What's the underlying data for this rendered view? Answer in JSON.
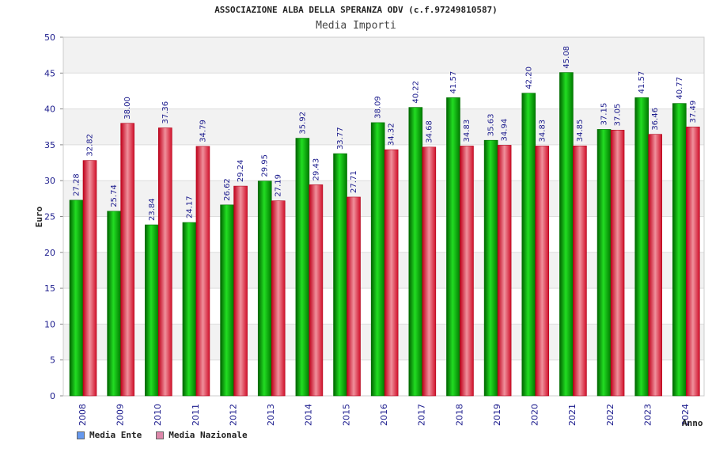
{
  "chart_data": {
    "type": "bar",
    "title": "ASSOCIAZIONE ALBA DELLA SPERANZA ODV (c.f.97249810587)",
    "subtitle": "Media Importi",
    "xlabel": "Anno",
    "ylabel": "Euro",
    "ylim": [
      0,
      50
    ],
    "yticks": [
      0,
      5,
      10,
      15,
      20,
      25,
      30,
      35,
      40,
      45,
      50
    ],
    "categories": [
      "2008",
      "2009",
      "2010",
      "2011",
      "2012",
      "2013",
      "2014",
      "2015",
      "2016",
      "2017",
      "2018",
      "2019",
      "2020",
      "2021",
      "2022",
      "2023",
      "2024"
    ],
    "series": [
      {
        "name": "Media Ente",
        "color": "#00b000",
        "legend_color": "#6699ee",
        "values": [
          27.28,
          25.74,
          23.84,
          24.17,
          26.62,
          29.95,
          35.92,
          33.77,
          38.09,
          40.22,
          41.57,
          35.63,
          42.2,
          45.08,
          37.15,
          41.57,
          40.77
        ],
        "labels": [
          "27.28",
          "25.74",
          "23.84",
          "24.17",
          "26.62",
          "29.95",
          "35.92",
          "33.77",
          "38.09",
          "40.22",
          "41.57",
          "35.63",
          "42.20",
          "45.08",
          "37.15",
          "41.57",
          "40.77"
        ]
      },
      {
        "name": "Media Nazionale",
        "color": "#e0142c",
        "legend_color": "#dd88aa",
        "values": [
          32.82,
          38.0,
          37.36,
          34.79,
          29.24,
          27.19,
          29.43,
          27.71,
          34.32,
          34.68,
          34.83,
          34.94,
          34.83,
          34.85,
          37.05,
          36.46,
          37.49
        ],
        "labels": [
          "32.82",
          "38.00",
          "37.36",
          "34.79",
          "29.24",
          "27.19",
          "29.43",
          "27.71",
          "34.32",
          "34.68",
          "34.83",
          "34.94",
          "34.83",
          "34.85",
          "37.05",
          "36.46",
          "37.49"
        ]
      }
    ],
    "grid": true,
    "legend_position": "bottom-left"
  }
}
